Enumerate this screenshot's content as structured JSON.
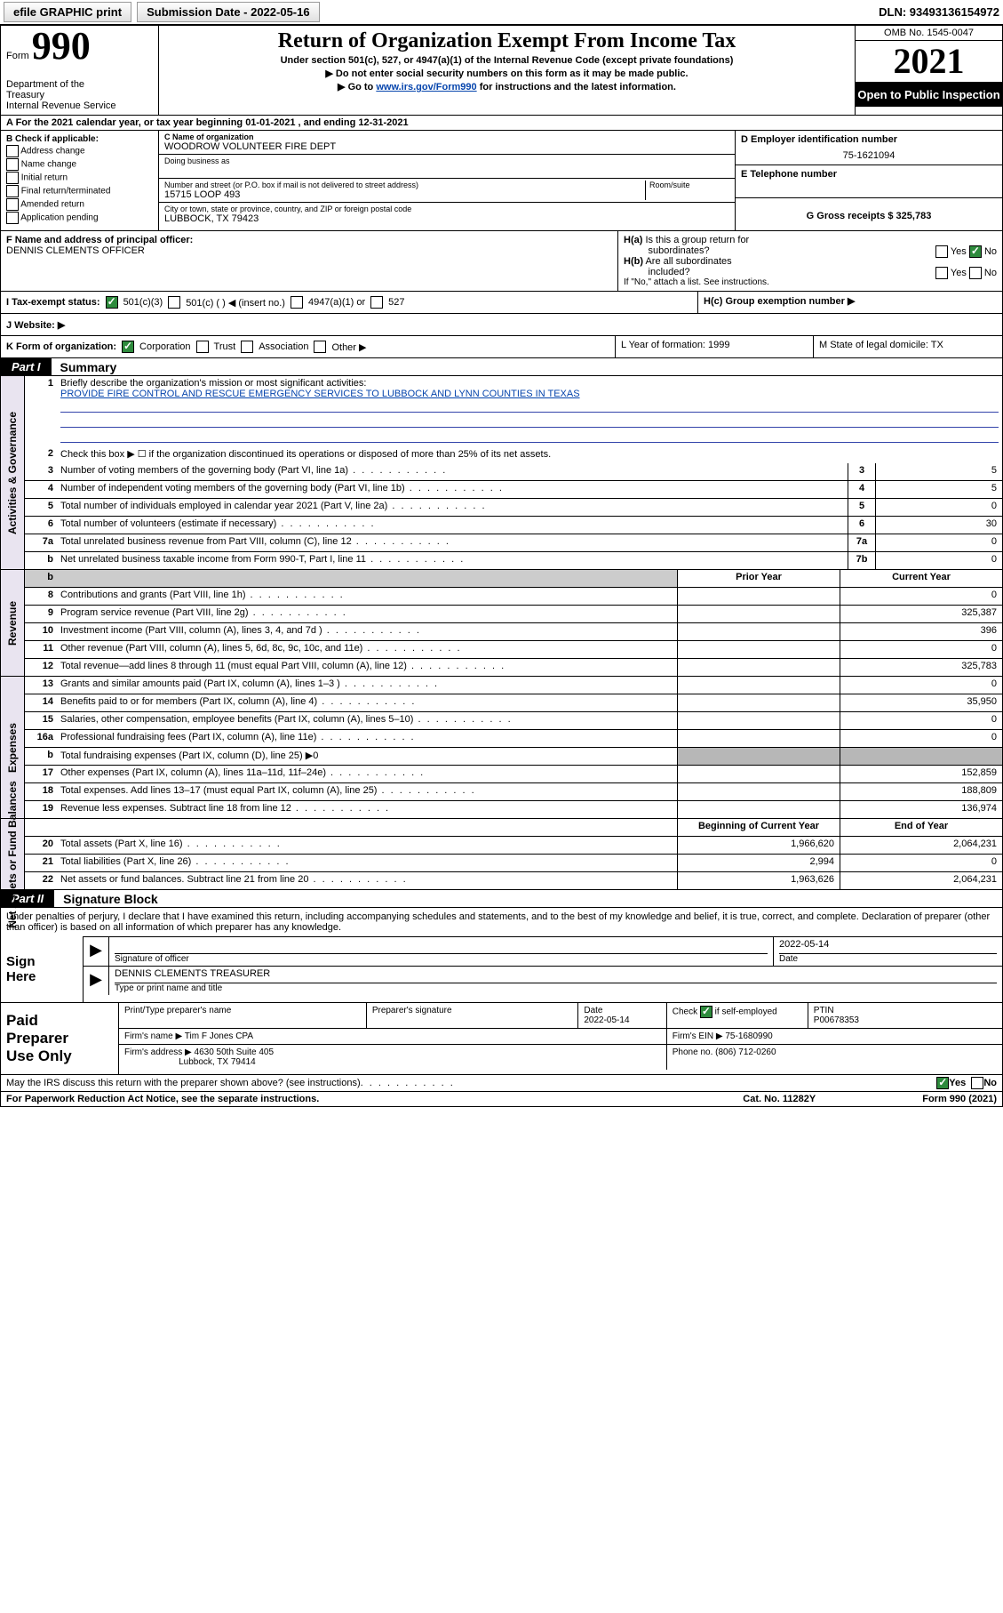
{
  "colors": {
    "check_green": "#2e8b3d",
    "link": "#0645ad",
    "vtab_bg": "#e9e4f0",
    "grey_shade": "#b7b7b7"
  },
  "topbar": {
    "efile": "efile GRAPHIC print",
    "sub_date": "Submission Date - 2022-05-16",
    "dln": "DLN: 93493136154972"
  },
  "hdr": {
    "form_label": "Form",
    "form_num": "990",
    "dept": "Department of the Treasury\nInternal Revenue Service",
    "title": "Return of Organization Exempt From Income Tax",
    "sub1": "Under section 501(c), 527, or 4947(a)(1) of the Internal Revenue Code (except private foundations)",
    "sub2": "▶ Do not enter social security numbers on this form as it may be made public.",
    "sub3_pre": "▶ Go to ",
    "sub3_link": "www.irs.gov/Form990",
    "sub3_post": " for instructions and the latest information.",
    "omb": "OMB No. 1545-0047",
    "year": "2021",
    "inspection": "Open to Public Inspection"
  },
  "rowA": "A  For the 2021 calendar year, or tax year beginning 01-01-2021   , and ending 12-31-2021",
  "B": {
    "label": "B Check if applicable:",
    "items": [
      "Address change",
      "Name change",
      "Initial return",
      "Final return/terminated",
      "Amended return",
      "Application pending"
    ]
  },
  "C": {
    "label": "C Name of organization",
    "name": "WOODROW VOLUNTEER FIRE DEPT",
    "dba_label": "Doing business as",
    "addr_label": "Number and street (or P.O. box if mail is not delivered to street address)",
    "addr": "15715 LOOP 493",
    "room_label": "Room/suite",
    "city_label": "City or town, state or province, country, and ZIP or foreign postal code",
    "city": "LUBBOCK, TX  79423"
  },
  "D": {
    "label": "D Employer identification number",
    "ein": "75-1621094"
  },
  "E": {
    "label": "E Telephone number"
  },
  "G": {
    "text": "G Gross receipts $ 325,783"
  },
  "F": {
    "label": "F  Name and address of principal officer:",
    "name": "DENNIS CLEMENTS OFFICER"
  },
  "H": {
    "a": "H(a)  Is this a group return for subordinates?",
    "a_yes": "Yes",
    "a_no": "No",
    "b": "H(b)  Are all subordinates included?",
    "b_note": "If \"No,\" attach a list. See instructions.",
    "c": "H(c)  Group exemption number ▶"
  },
  "I": {
    "label": "I    Tax-exempt status:",
    "opts": [
      "501(c)(3)",
      "501(c) (  ) ◀ (insert no.)",
      "4947(a)(1) or",
      "527"
    ]
  },
  "J": {
    "label": "J    Website: ▶"
  },
  "K": {
    "label": "K Form of organization:",
    "opts": [
      "Corporation",
      "Trust",
      "Association",
      "Other ▶"
    ]
  },
  "L": {
    "text": "L Year of formation: 1999"
  },
  "M": {
    "text": "M State of legal domicile: TX"
  },
  "partI": {
    "tag": "Part I",
    "title": "Summary"
  },
  "vtabs": {
    "ag": "Activities & Governance",
    "rev": "Revenue",
    "exp": "Expenses",
    "nab": "Net Assets or Fund Balances"
  },
  "mission": {
    "label": "Briefly describe the organization's mission or most significant activities:",
    "text": "PROVIDE FIRE CONTROL AND RESCUE EMERGENCY SERVICES TO LUBBOCK AND LYNN COUNTIES IN TEXAS"
  },
  "l2": "Check this box ▶ ☐  if the organization discontinued its operations or disposed of more than 25% of its net assets.",
  "lines_ag": [
    {
      "n": "3",
      "d": "Number of voting members of the governing body (Part VI, line 1a)",
      "box": "3",
      "v": "5"
    },
    {
      "n": "4",
      "d": "Number of independent voting members of the governing body (Part VI, line 1b)",
      "box": "4",
      "v": "5"
    },
    {
      "n": "5",
      "d": "Total number of individuals employed in calendar year 2021 (Part V, line 2a)",
      "box": "5",
      "v": "0"
    },
    {
      "n": "6",
      "d": "Total number of volunteers (estimate if necessary)",
      "box": "6",
      "v": "30"
    },
    {
      "n": "7a",
      "d": "Total unrelated business revenue from Part VIII, column (C), line 12",
      "box": "7a",
      "v": "0"
    },
    {
      "n": "b",
      "d": "Net unrelated business taxable income from Form 990-T, Part I, line 11",
      "box": "7b",
      "v": "0"
    }
  ],
  "two_col_hdr": {
    "py": "Prior Year",
    "cy": "Current Year"
  },
  "lines_rev": [
    {
      "n": "8",
      "d": "Contributions and grants (Part VIII, line 1h)",
      "py": "",
      "cy": "0"
    },
    {
      "n": "9",
      "d": "Program service revenue (Part VIII, line 2g)",
      "py": "",
      "cy": "325,387"
    },
    {
      "n": "10",
      "d": "Investment income (Part VIII, column (A), lines 3, 4, and 7d )",
      "py": "",
      "cy": "396"
    },
    {
      "n": "11",
      "d": "Other revenue (Part VIII, column (A), lines 5, 6d, 8c, 9c, 10c, and 11e)",
      "py": "",
      "cy": "0"
    },
    {
      "n": "12",
      "d": "Total revenue—add lines 8 through 11 (must equal Part VIII, column (A), line 12)",
      "py": "",
      "cy": "325,783"
    }
  ],
  "lines_exp": [
    {
      "n": "13",
      "d": "Grants and similar amounts paid (Part IX, column (A), lines 1–3 )",
      "py": "",
      "cy": "0"
    },
    {
      "n": "14",
      "d": "Benefits paid to or for members (Part IX, column (A), line 4)",
      "py": "",
      "cy": "35,950"
    },
    {
      "n": "15",
      "d": "Salaries, other compensation, employee benefits (Part IX, column (A), lines 5–10)",
      "py": "",
      "cy": "0"
    },
    {
      "n": "16a",
      "d": "Professional fundraising fees (Part IX, column (A), line 11e)",
      "py": "",
      "cy": "0"
    },
    {
      "n": "b",
      "d": "Total fundraising expenses (Part IX, column (D), line 25) ▶0",
      "span": true
    },
    {
      "n": "17",
      "d": "Other expenses (Part IX, column (A), lines 11a–11d, 11f–24e)",
      "py": "",
      "cy": "152,859"
    },
    {
      "n": "18",
      "d": "Total expenses. Add lines 13–17 (must equal Part IX, column (A), line 25)",
      "py": "",
      "cy": "188,809"
    },
    {
      "n": "19",
      "d": "Revenue less expenses. Subtract line 18 from line 12",
      "py": "",
      "cy": "136,974"
    }
  ],
  "nab_hdr": {
    "b": "Beginning of Current Year",
    "e": "End of Year"
  },
  "lines_nab": [
    {
      "n": "20",
      "d": "Total assets (Part X, line 16)",
      "b": "1,966,620",
      "e": "2,064,231"
    },
    {
      "n": "21",
      "d": "Total liabilities (Part X, line 26)",
      "b": "2,994",
      "e": "0"
    },
    {
      "n": "22",
      "d": "Net assets or fund balances. Subtract line 21 from line 20",
      "b": "1,963,626",
      "e": "2,064,231"
    }
  ],
  "partII": {
    "tag": "Part II",
    "title": "Signature Block"
  },
  "penalty": "Under penalties of perjury, I declare that I have examined this return, including accompanying schedules and statements, and to the best of my knowledge and belief, it is true, correct, and complete. Declaration of preparer (other than officer) is based on all information of which preparer has any knowledge.",
  "sign": {
    "label": "Sign Here",
    "sig_label": "Signature of officer",
    "date": "2022-05-14",
    "date_label": "Date",
    "name": "DENNIS CLEMENTS  TREASURER",
    "name_label": "Type or print name and title"
  },
  "paid": {
    "label": "Paid Preparer Use Only",
    "h1": "Print/Type preparer's name",
    "h2": "Preparer's signature",
    "h3": "Date",
    "date": "2022-05-14",
    "h4_pre": "Check",
    "h4_post": "if self-employed",
    "h5": "PTIN",
    "ptin": "P00678353",
    "firm_label": "Firm's name    ▶",
    "firm": "Tim F Jones CPA",
    "ein_label": "Firm's EIN ▶",
    "ein": "75-1680990",
    "addr_label": "Firm's address ▶",
    "addr1": "4630 50th Suite 405",
    "addr2": "Lubbock, TX  79414",
    "phone_label": "Phone no.",
    "phone": "(806) 712-0260"
  },
  "may": {
    "text": "May the IRS discuss this return with the preparer shown above? (see instructions)",
    "yes": "Yes",
    "no": "No"
  },
  "footer": {
    "l": "For Paperwork Reduction Act Notice, see the separate instructions.",
    "m": "Cat. No. 11282Y",
    "r": "Form 990 (2021)"
  }
}
